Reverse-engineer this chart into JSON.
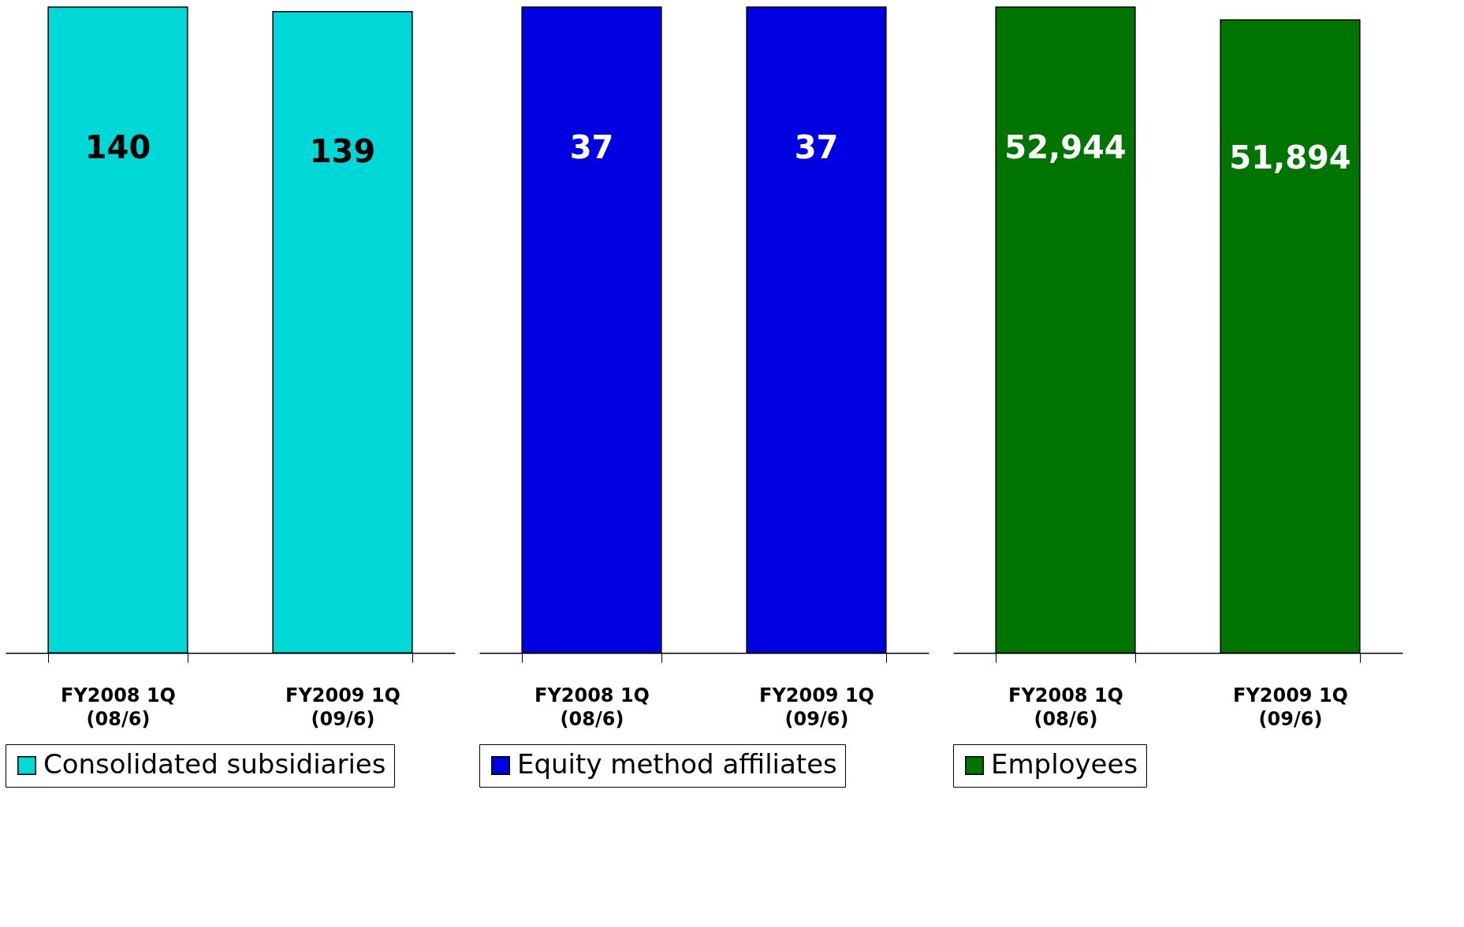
{
  "chart_data": [
    {
      "type": "bar",
      "categories": [
        "FY2008 1Q\n(08/6)",
        "FY2009 1Q\n(09/6)"
      ],
      "series": [
        {
          "name": "Consolidated subsidiaries",
          "color": "#00d8d8",
          "values": [
            140,
            139
          ],
          "value_labels": [
            "140",
            "139"
          ]
        }
      ],
      "legend": "bottom"
    },
    {
      "type": "bar",
      "categories": [
        "FY2008 1Q\n(08/6)",
        "FY2009 1Q\n(09/6)"
      ],
      "series": [
        {
          "name": "Equity method affiliates",
          "color": "#0000e0",
          "values": [
            37,
            37
          ],
          "value_labels": [
            "37",
            "37"
          ]
        }
      ],
      "legend": "bottom"
    },
    {
      "type": "bar",
      "categories": [
        "FY2008 1Q\n(08/6)",
        "FY2009 1Q\n(09/6)"
      ],
      "series": [
        {
          "name": "Employees",
          "color": "#007400",
          "values": [
            52944,
            51894
          ],
          "value_labels": [
            "52,944",
            "51,894"
          ]
        }
      ],
      "legend": "bottom"
    }
  ]
}
